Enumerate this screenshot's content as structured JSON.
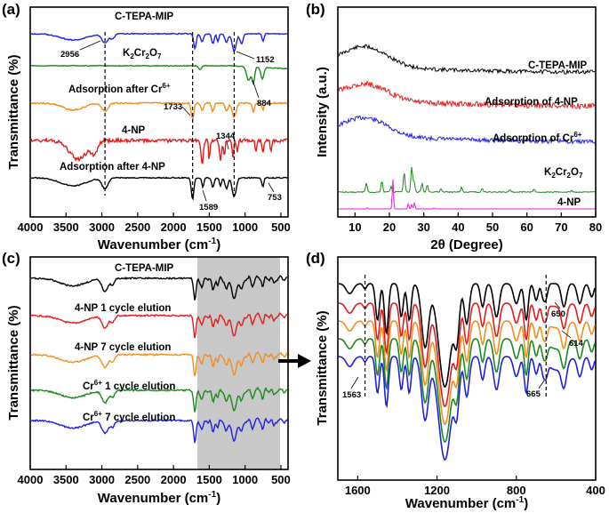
{
  "chart_data": [
    {
      "panel": "(a)",
      "type": "line",
      "xlabel": "Wavenumber (cm⁻¹)",
      "ylabel": "Transmittance (%)",
      "xlim": [
        4000,
        400
      ],
      "xticks": [
        "4000",
        "3500",
        "3000",
        "2500",
        "2000",
        "1500",
        "1000",
        "500"
      ],
      "series": [
        {
          "name": "C-TEPA-MIP",
          "color": "#1f1fe6",
          "seed": 1,
          "noise": 0.02,
          "base": 0.0,
          "slope": 0.0,
          "bands": [
            [
              3400,
              0.25,
              250
            ],
            [
              2956,
              0.35,
              60
            ],
            [
              2850,
              0.2,
              40
            ],
            [
              1700,
              0.6,
              25
            ],
            [
              1600,
              0.3,
              30
            ],
            [
              1450,
              0.4,
              25
            ],
            [
              1380,
              0.3,
              20
            ],
            [
              1260,
              0.35,
              30
            ],
            [
              1152,
              0.7,
              40
            ],
            [
              1050,
              0.4,
              30
            ],
            [
              750,
              0.3,
              20
            ]
          ]
        },
        {
          "name": "K₂Cr₂O₇",
          "color": "#1a8a1a",
          "seed": 2,
          "noise": 0.02,
          "base": 0.0,
          "slope": 0.15,
          "bands": [
            [
              1630,
              0.2,
              25
            ],
            [
              950,
              0.7,
              40
            ],
            [
              884,
              0.8,
              25
            ],
            [
              760,
              0.6,
              30
            ]
          ]
        },
        {
          "name": "Adsorption after Cr⁶⁺",
          "color": "#f28c1e",
          "seed": 3,
          "noise": 0.03,
          "base": 0.0,
          "slope": 0.0,
          "bands": [
            [
              3400,
              0.3,
              200
            ],
            [
              2956,
              0.35,
              60
            ],
            [
              1733,
              0.7,
              25
            ],
            [
              1600,
              0.3,
              30
            ],
            [
              1450,
              0.35,
              25
            ],
            [
              1260,
              0.35,
              30
            ],
            [
              1152,
              0.6,
              40
            ],
            [
              884,
              0.4,
              20
            ],
            [
              750,
              0.3,
              20
            ]
          ]
        },
        {
          "name": "4-NP",
          "color": "#e61a1a",
          "seed": 4,
          "noise": 0.07,
          "base": 0.0,
          "slope": 0.0,
          "bands": [
            [
              3330,
              0.7,
              180
            ],
            [
              3100,
              0.4,
              60
            ],
            [
              1610,
              0.6,
              15
            ],
            [
              1590,
              0.7,
              15
            ],
            [
              1500,
              0.7,
              15
            ],
            [
              1344,
              0.8,
              20
            ],
            [
              1290,
              0.6,
              15
            ],
            [
              1170,
              0.6,
              15
            ],
            [
              1110,
              0.5,
              15
            ],
            [
              850,
              0.5,
              15
            ],
            [
              753,
              0.5,
              15
            ],
            [
              640,
              0.4,
              15
            ]
          ]
        },
        {
          "name": "Adsorption after 4-NP",
          "color": "#000000",
          "seed": 5,
          "noise": 0.02,
          "base": 0.0,
          "slope": 0.0,
          "bands": [
            [
              3400,
              0.3,
              250
            ],
            [
              2956,
              0.4,
              60
            ],
            [
              1733,
              0.8,
              25
            ],
            [
              1589,
              0.35,
              20
            ],
            [
              1450,
              0.35,
              25
            ],
            [
              1344,
              0.3,
              20
            ],
            [
              1260,
              0.4,
              30
            ],
            [
              1152,
              0.7,
              40
            ],
            [
              753,
              0.35,
              20
            ]
          ]
        }
      ],
      "labels": [
        "C-TEPA-MIP",
        "K₂Cr₂O₇",
        "Adsorption after Cr⁶⁺",
        "4-NP",
        "Adsorption after 4-NP"
      ],
      "dashed_lines": [
        2956,
        1733,
        1152
      ],
      "annotations": [
        "2956",
        "1152",
        "1733",
        "884",
        "1344",
        "1589",
        "753"
      ]
    },
    {
      "panel": "(b)",
      "type": "line",
      "xlabel": "2θ (Degree)",
      "ylabel": "Intensity (a.u.)",
      "xlim": [
        5,
        80
      ],
      "xticks": [
        "10",
        "20",
        "30",
        "40",
        "50",
        "60",
        "70",
        "80"
      ],
      "series": [
        {
          "name": "C-TEPA-MIP",
          "color": "#000000"
        },
        {
          "name": "Adsorption of 4-NP",
          "color": "#e61a1a"
        },
        {
          "name": "Adsorption of Cr⁶⁺",
          "color": "#1f1fe6"
        },
        {
          "name": "K₂Cr₂O₇",
          "color": "#1a8a1a"
        },
        {
          "name": "4-NP",
          "color": "#e61ae6"
        }
      ],
      "labels": [
        "C-TEPA-MIP",
        "Adsorption of 4-NP",
        "Adsorption of Cr⁶⁺",
        "K₂Cr₂O₇",
        "4-NP"
      ]
    },
    {
      "panel": "(c)",
      "type": "line",
      "xlabel": "Wavenumber (cm⁻¹)",
      "ylabel": "Transmittance (%)",
      "xlim": [
        4000,
        400
      ],
      "xticks": [
        "4000",
        "3500",
        "3000",
        "2500",
        "2000",
        "1500",
        "1000",
        "500"
      ],
      "shaded_region": [
        1700,
        500
      ],
      "series": [
        {
          "name": "C-TEPA-MIP",
          "color": "#000000"
        },
        {
          "name": "4-NP 1 cycle elution",
          "color": "#e61a1a"
        },
        {
          "name": "4-NP 7 cycle elution",
          "color": "#f28c1e"
        },
        {
          "name": "Cr⁶⁺ 1 cycle elution",
          "color": "#1a8a1a"
        },
        {
          "name": "Cr⁶⁺ 7 cycle elution",
          "color": "#1f1fe6"
        }
      ],
      "labels": [
        "C-TEPA-MIP",
        "4-NP 1 cycle elution",
        "4-NP 7 cycle elution",
        "Cr⁶⁺ 1 cycle elution",
        "Cr⁶⁺ 7 cycle elution"
      ]
    },
    {
      "panel": "(d)",
      "type": "line",
      "xlabel": "Wavenumber (cm⁻¹)",
      "ylabel": "Transmittance (%)",
      "xlim": [
        1700,
        400
      ],
      "xticks": [
        "1600",
        "1200",
        "800",
        "400"
      ],
      "series": [
        {
          "name": "C-TEPA-MIP",
          "color": "#000000"
        },
        {
          "name": "4-NP 1 cycle elution",
          "color": "#e61a1a"
        },
        {
          "name": "4-NP 7 cycle elution",
          "color": "#f28c1e"
        },
        {
          "name": "Cr⁶⁺ 1 cycle elution",
          "color": "#1a8a1a"
        },
        {
          "name": "Cr⁶⁺ 7 cycle elution",
          "color": "#1f1fe6"
        }
      ],
      "dashed_lines": [
        1563,
        650
      ],
      "annotations": [
        "1563",
        "650",
        "614",
        "665"
      ]
    }
  ],
  "panels": {
    "a": {
      "letter": "(a)",
      "xlabel": "Wavenumber (cm",
      "xlabel_sup": "-1",
      "xlabel_end": ")",
      "ylabel": "Transmittance (%)"
    },
    "b": {
      "letter": "(b)",
      "xlabel": "2θ (Degree)",
      "ylabel": "Intensity (a.u.)"
    },
    "c": {
      "letter": "(c)",
      "xlabel": "Wavenumber (cm",
      "xlabel_sup": "-1",
      "xlabel_end": ")",
      "ylabel": "Transmittance (%)"
    },
    "d": {
      "letter": "(d)",
      "xlabel": "Wavenumber (cm",
      "xlabel_sup": "-1",
      "xlabel_end": ")",
      "ylabel": "Transmittance (%)"
    }
  },
  "text_labels": {
    "a_ctepa": "C-TEPA-MIP",
    "a_k": "K",
    "a_k_sub1": "2",
    "a_cr": "Cr",
    "a_k_sub2": "2",
    "a_o": "O",
    "a_k_sub3": "7",
    "a_adsCr": "Adsorption after Cr",
    "a_adsCr_sup": "6+",
    "a_4np": "4-NP",
    "a_ads4np": "Adsorption after 4-NP",
    "a_2956": "2956",
    "a_1152": "1152",
    "a_1733": "1733",
    "a_884": "884",
    "a_1344": "1344",
    "a_1589": "1589",
    "a_753": "753",
    "b_ctepa": "C-TEPA-MIP",
    "b_ads4np": "Adsorption of 4-NP",
    "b_adsCr": "Adsorption of Cr",
    "b_adsCr_sup": "6+",
    "b_k": "K",
    "b_k_sub1": "2",
    "b_cr": "Cr",
    "b_k_sub2": "2",
    "b_o": "O",
    "b_k_sub3": "7",
    "b_4np": "4-NP",
    "c_ctepa": "C-TEPA-MIP",
    "c_4np1": "4-NP 1 cycle elution",
    "c_4np7": "4-NP 7 cycle elution",
    "c_cr1": "Cr",
    "c_cr1_sup": "6+",
    "c_cr1_end": " 1 cycle elution",
    "c_cr7": "Cr",
    "c_cr7_sup": "6+",
    "c_cr7_end": " 7 cycle elution",
    "d_1563": "1563",
    "d_650": "650",
    "d_614": "614",
    "d_665": "665"
  }
}
